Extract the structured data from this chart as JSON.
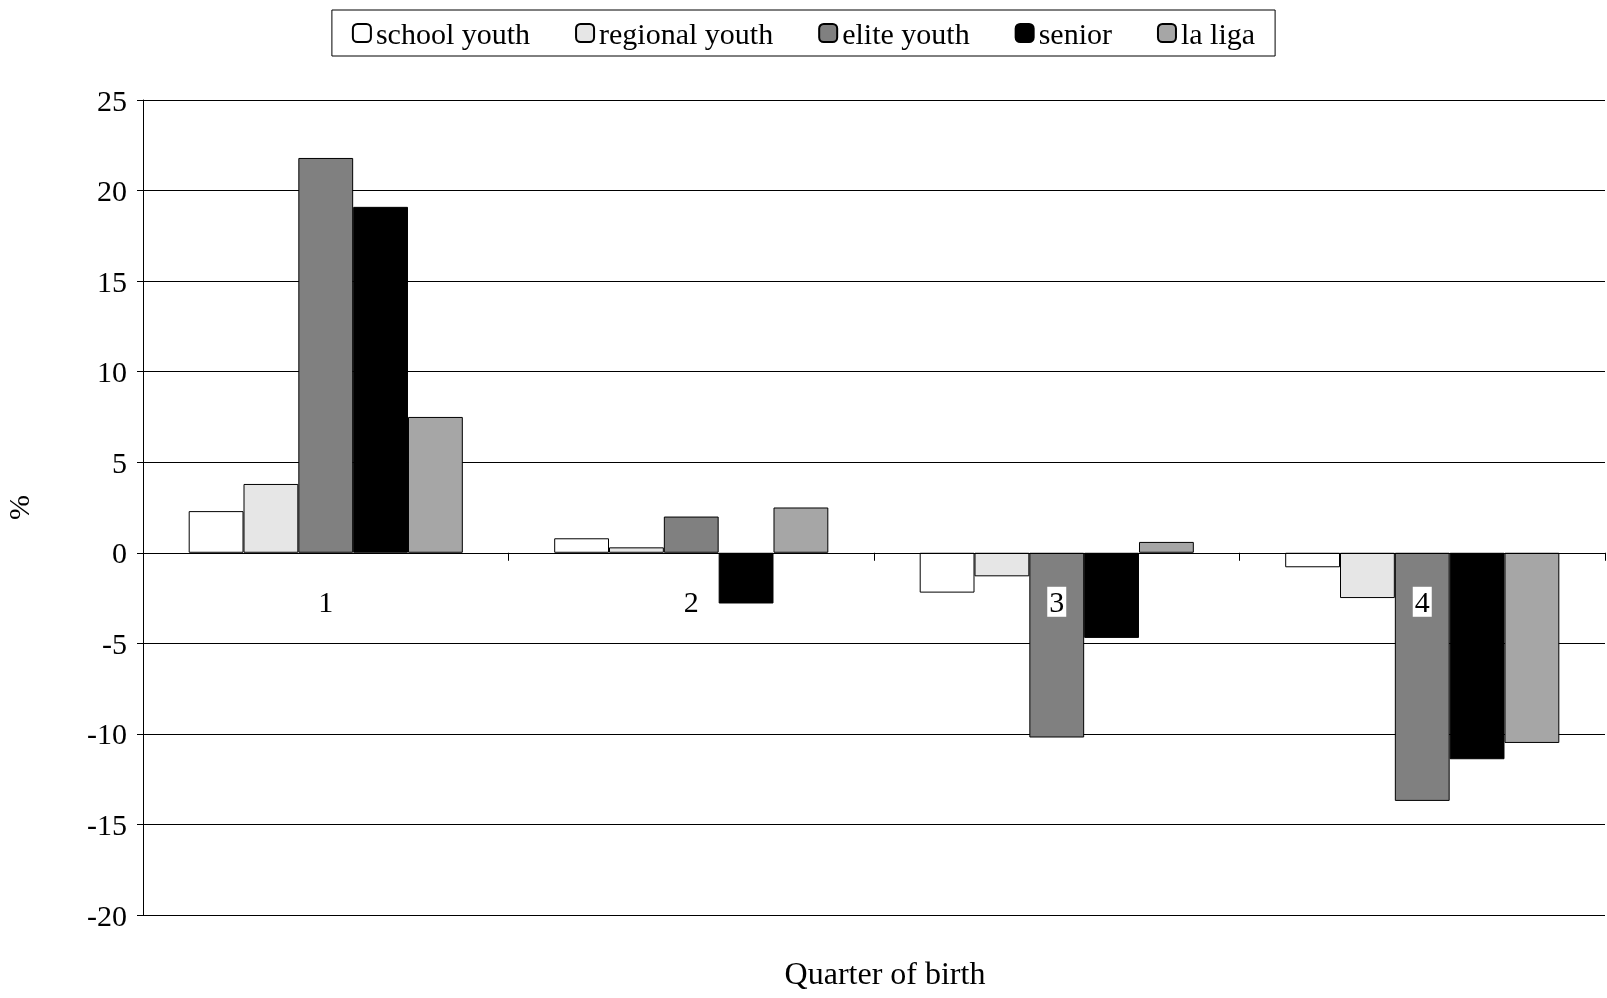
{
  "chart_data": {
    "type": "bar",
    "xlabel": "Quarter of birth",
    "ylabel": "%",
    "categories": [
      "1",
      "2",
      "3",
      "4"
    ],
    "series": [
      {
        "name": "school youth",
        "color": "#ffffff",
        "values": [
          2.3,
          0.8,
          -2.2,
          -0.8
        ]
      },
      {
        "name": "regional youth",
        "color": "#e6e6e6",
        "values": [
          3.8,
          0.3,
          -1.3,
          -2.5
        ]
      },
      {
        "name": "elite youth",
        "color": "#808080",
        "values": [
          21.8,
          2.0,
          -10.2,
          -13.7
        ]
      },
      {
        "name": "senior",
        "color": "#000000",
        "values": [
          19.1,
          -2.8,
          -4.7,
          -11.4
        ]
      },
      {
        "name": "la liga",
        "color": "#a6a6a6",
        "values": [
          7.5,
          2.5,
          0.6,
          -10.5
        ]
      }
    ],
    "ylim": [
      -20,
      25
    ],
    "yticks": [
      -20,
      -15,
      -10,
      -5,
      0,
      5,
      10,
      15,
      20,
      25
    ],
    "grid": "y",
    "legend": "top"
  }
}
